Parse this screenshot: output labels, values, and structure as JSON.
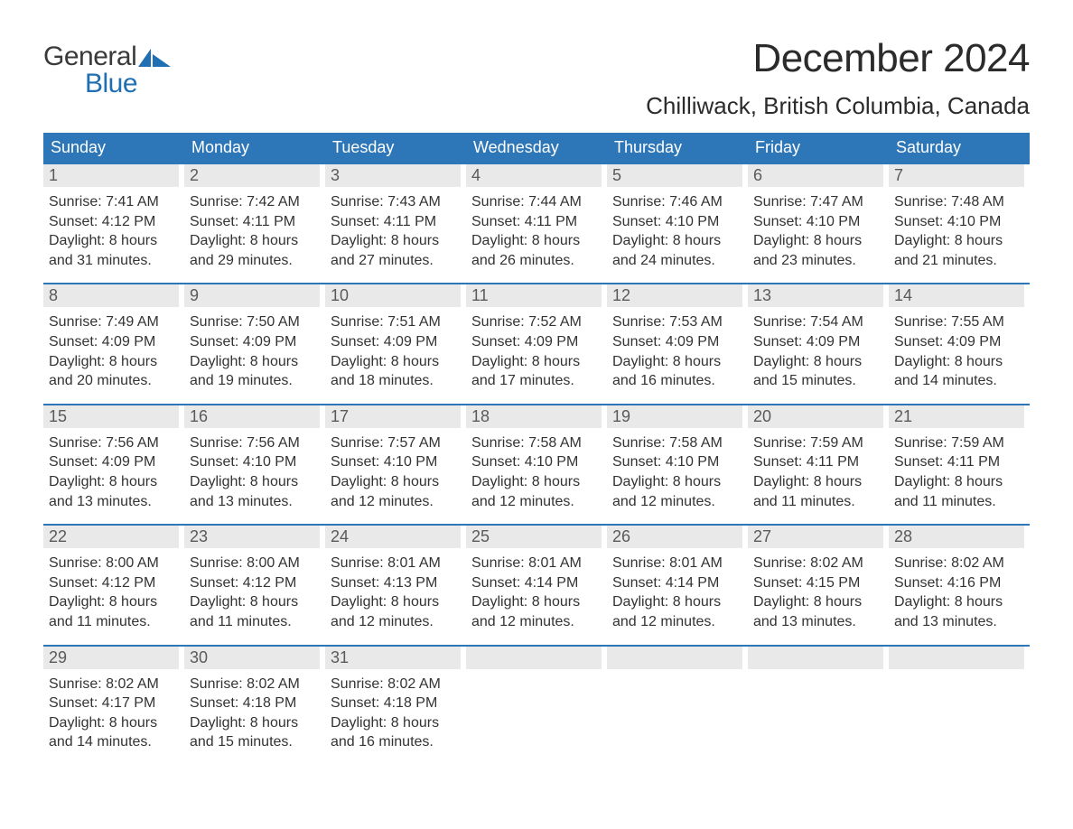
{
  "logo": {
    "word1": "General",
    "word2": "Blue"
  },
  "title": "December 2024",
  "location": "Chilliwack, British Columbia, Canada",
  "colors": {
    "header_bg": "#2d76b8",
    "header_text": "#ffffff",
    "day_number_bg": "#e9e9e9",
    "day_number_text": "#5a5a5a",
    "body_text": "#333333",
    "logo_gray": "#3a3a3a",
    "logo_blue": "#1f6fb2",
    "row_border": "#2d76b8",
    "page_bg": "#ffffff"
  },
  "typography": {
    "month_title_fontsize": 44,
    "location_fontsize": 26,
    "weekday_fontsize": 18,
    "day_number_fontsize": 18,
    "day_body_fontsize": 16,
    "logo_fontsize": 30
  },
  "weekdays": [
    "Sunday",
    "Monday",
    "Tuesday",
    "Wednesday",
    "Thursday",
    "Friday",
    "Saturday"
  ],
  "weeks": [
    [
      {
        "n": "1",
        "sunrise": "Sunrise: 7:41 AM",
        "sunset": "Sunset: 4:12 PM",
        "d1": "Daylight: 8 hours",
        "d2": "and 31 minutes."
      },
      {
        "n": "2",
        "sunrise": "Sunrise: 7:42 AM",
        "sunset": "Sunset: 4:11 PM",
        "d1": "Daylight: 8 hours",
        "d2": "and 29 minutes."
      },
      {
        "n": "3",
        "sunrise": "Sunrise: 7:43 AM",
        "sunset": "Sunset: 4:11 PM",
        "d1": "Daylight: 8 hours",
        "d2": "and 27 minutes."
      },
      {
        "n": "4",
        "sunrise": "Sunrise: 7:44 AM",
        "sunset": "Sunset: 4:11 PM",
        "d1": "Daylight: 8 hours",
        "d2": "and 26 minutes."
      },
      {
        "n": "5",
        "sunrise": "Sunrise: 7:46 AM",
        "sunset": "Sunset: 4:10 PM",
        "d1": "Daylight: 8 hours",
        "d2": "and 24 minutes."
      },
      {
        "n": "6",
        "sunrise": "Sunrise: 7:47 AM",
        "sunset": "Sunset: 4:10 PM",
        "d1": "Daylight: 8 hours",
        "d2": "and 23 minutes."
      },
      {
        "n": "7",
        "sunrise": "Sunrise: 7:48 AM",
        "sunset": "Sunset: 4:10 PM",
        "d1": "Daylight: 8 hours",
        "d2": "and 21 minutes."
      }
    ],
    [
      {
        "n": "8",
        "sunrise": "Sunrise: 7:49 AM",
        "sunset": "Sunset: 4:09 PM",
        "d1": "Daylight: 8 hours",
        "d2": "and 20 minutes."
      },
      {
        "n": "9",
        "sunrise": "Sunrise: 7:50 AM",
        "sunset": "Sunset: 4:09 PM",
        "d1": "Daylight: 8 hours",
        "d2": "and 19 minutes."
      },
      {
        "n": "10",
        "sunrise": "Sunrise: 7:51 AM",
        "sunset": "Sunset: 4:09 PM",
        "d1": "Daylight: 8 hours",
        "d2": "and 18 minutes."
      },
      {
        "n": "11",
        "sunrise": "Sunrise: 7:52 AM",
        "sunset": "Sunset: 4:09 PM",
        "d1": "Daylight: 8 hours",
        "d2": "and 17 minutes."
      },
      {
        "n": "12",
        "sunrise": "Sunrise: 7:53 AM",
        "sunset": "Sunset: 4:09 PM",
        "d1": "Daylight: 8 hours",
        "d2": "and 16 minutes."
      },
      {
        "n": "13",
        "sunrise": "Sunrise: 7:54 AM",
        "sunset": "Sunset: 4:09 PM",
        "d1": "Daylight: 8 hours",
        "d2": "and 15 minutes."
      },
      {
        "n": "14",
        "sunrise": "Sunrise: 7:55 AM",
        "sunset": "Sunset: 4:09 PM",
        "d1": "Daylight: 8 hours",
        "d2": "and 14 minutes."
      }
    ],
    [
      {
        "n": "15",
        "sunrise": "Sunrise: 7:56 AM",
        "sunset": "Sunset: 4:09 PM",
        "d1": "Daylight: 8 hours",
        "d2": "and 13 minutes."
      },
      {
        "n": "16",
        "sunrise": "Sunrise: 7:56 AM",
        "sunset": "Sunset: 4:10 PM",
        "d1": "Daylight: 8 hours",
        "d2": "and 13 minutes."
      },
      {
        "n": "17",
        "sunrise": "Sunrise: 7:57 AM",
        "sunset": "Sunset: 4:10 PM",
        "d1": "Daylight: 8 hours",
        "d2": "and 12 minutes."
      },
      {
        "n": "18",
        "sunrise": "Sunrise: 7:58 AM",
        "sunset": "Sunset: 4:10 PM",
        "d1": "Daylight: 8 hours",
        "d2": "and 12 minutes."
      },
      {
        "n": "19",
        "sunrise": "Sunrise: 7:58 AM",
        "sunset": "Sunset: 4:10 PM",
        "d1": "Daylight: 8 hours",
        "d2": "and 12 minutes."
      },
      {
        "n": "20",
        "sunrise": "Sunrise: 7:59 AM",
        "sunset": "Sunset: 4:11 PM",
        "d1": "Daylight: 8 hours",
        "d2": "and 11 minutes."
      },
      {
        "n": "21",
        "sunrise": "Sunrise: 7:59 AM",
        "sunset": "Sunset: 4:11 PM",
        "d1": "Daylight: 8 hours",
        "d2": "and 11 minutes."
      }
    ],
    [
      {
        "n": "22",
        "sunrise": "Sunrise: 8:00 AM",
        "sunset": "Sunset: 4:12 PM",
        "d1": "Daylight: 8 hours",
        "d2": "and 11 minutes."
      },
      {
        "n": "23",
        "sunrise": "Sunrise: 8:00 AM",
        "sunset": "Sunset: 4:12 PM",
        "d1": "Daylight: 8 hours",
        "d2": "and 11 minutes."
      },
      {
        "n": "24",
        "sunrise": "Sunrise: 8:01 AM",
        "sunset": "Sunset: 4:13 PM",
        "d1": "Daylight: 8 hours",
        "d2": "and 12 minutes."
      },
      {
        "n": "25",
        "sunrise": "Sunrise: 8:01 AM",
        "sunset": "Sunset: 4:14 PM",
        "d1": "Daylight: 8 hours",
        "d2": "and 12 minutes."
      },
      {
        "n": "26",
        "sunrise": "Sunrise: 8:01 AM",
        "sunset": "Sunset: 4:14 PM",
        "d1": "Daylight: 8 hours",
        "d2": "and 12 minutes."
      },
      {
        "n": "27",
        "sunrise": "Sunrise: 8:02 AM",
        "sunset": "Sunset: 4:15 PM",
        "d1": "Daylight: 8 hours",
        "d2": "and 13 minutes."
      },
      {
        "n": "28",
        "sunrise": "Sunrise: 8:02 AM",
        "sunset": "Sunset: 4:16 PM",
        "d1": "Daylight: 8 hours",
        "d2": "and 13 minutes."
      }
    ],
    [
      {
        "n": "29",
        "sunrise": "Sunrise: 8:02 AM",
        "sunset": "Sunset: 4:17 PM",
        "d1": "Daylight: 8 hours",
        "d2": "and 14 minutes."
      },
      {
        "n": "30",
        "sunrise": "Sunrise: 8:02 AM",
        "sunset": "Sunset: 4:18 PM",
        "d1": "Daylight: 8 hours",
        "d2": "and 15 minutes."
      },
      {
        "n": "31",
        "sunrise": "Sunrise: 8:02 AM",
        "sunset": "Sunset: 4:18 PM",
        "d1": "Daylight: 8 hours",
        "d2": "and 16 minutes."
      },
      null,
      null,
      null,
      null
    ]
  ]
}
